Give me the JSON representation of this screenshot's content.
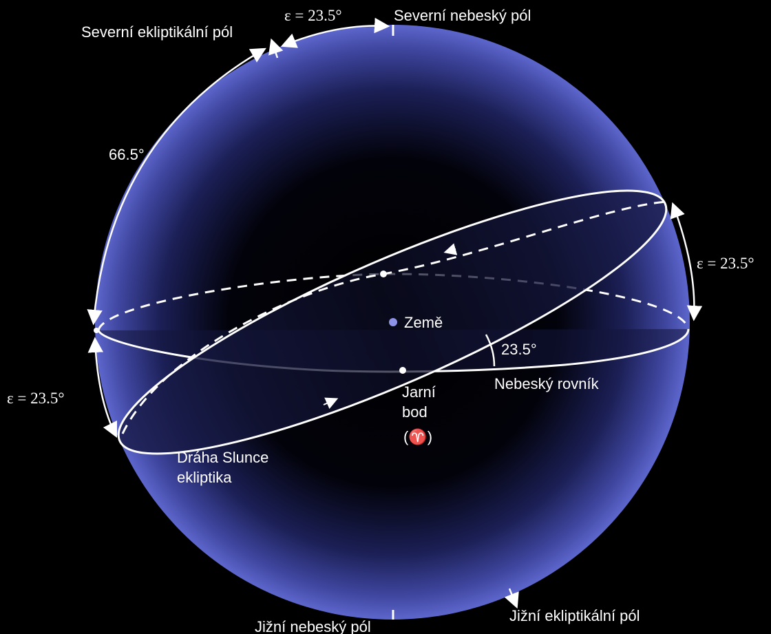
{
  "labels": {
    "north_ecliptic_pole": "Severní ekliptikální pól",
    "north_celestial_pole": "Severní nebeský pól",
    "south_celestial_pole": "Jižní nebeský pól",
    "south_ecliptic_pole": "Jižní ekliptikální pól",
    "earth": "Země",
    "vernal_point_line1": "Jarní",
    "vernal_point_line2": "bod",
    "vernal_point_symbol": "(♈)",
    "celestial_equator": "Nebeský rovník",
    "sun_path_line1": "Dráha Slunce",
    "sun_path_line2": "ekliptika"
  },
  "angles": {
    "eps_top": "ε = 23.5°",
    "eps_right": "ε = 23.5°",
    "eps_left": "ε = 23.5°",
    "complement": "66.5°",
    "inclination": "23.5°"
  },
  "colors": {
    "background": "#000000",
    "sphere_rim": "#5a63c8",
    "lines": "#ffffff",
    "earth_dot": "#8d93e6"
  }
}
